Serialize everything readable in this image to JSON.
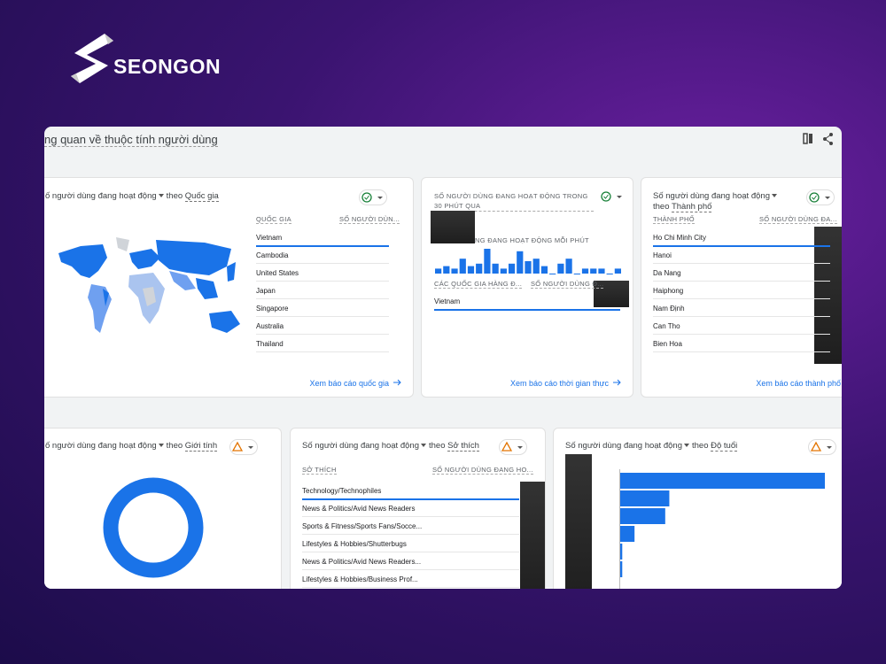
{
  "brand": "SEONGON",
  "page_title": "ng quan về thuộc tính người dùng",
  "cards": [
    {
      "title": "ố người dùng đang hoạt động",
      "by": "theo",
      "dimension": "Quốc gia",
      "columns": [
        "QUỐC GIA",
        "SỐ NGƯỜI DÙN..."
      ],
      "rows": [
        "Vietnam",
        "Cambodia",
        "United States",
        "Japan",
        "Singapore",
        "Australia",
        "Thailand"
      ],
      "link": "Xem báo cáo quốc gia"
    },
    {
      "title": "SỐ NGƯỜI DÙNG ĐANG HOẠT ĐỘNG TRONG 30 PHÚT QUA",
      "subtitle": "NG ĐANG HOẠT ĐỘNG MỖI PHÚT",
      "chart": {
        "type": "bar",
        "color": "#1a73e8",
        "ylim": [
          0,
          10
        ],
        "values": [
          2,
          3,
          2,
          6,
          3,
          4,
          10,
          4,
          2,
          4,
          9,
          5,
          6,
          3,
          0,
          4,
          6,
          0,
          2,
          2,
          2,
          0,
          2
        ]
      },
      "columns": [
        "CÁC QUỐC GIA HÀNG Đ...",
        "SỐ NGƯỜI DÙNG Đ..."
      ],
      "rows": [
        "Vietnam"
      ],
      "link": "Xem báo cáo thời gian thực"
    },
    {
      "title": "Số người dùng đang hoạt động",
      "by": "theo",
      "dimension": "Thành phố",
      "columns": [
        "THÀNH PHỐ",
        "SỐ NGƯỜI DÙNG ĐA..."
      ],
      "rows": [
        "Ho Chi Minh City",
        "Hanoi",
        "Da Nang",
        "Haiphong",
        "Nam Định",
        "Can Tho",
        "Bien Hoa"
      ],
      "link": "Xem báo cáo thành phố"
    },
    {
      "title": "ố người dùng đang hoạt động",
      "by": "theo",
      "dimension": "Giới tính"
    },
    {
      "title": "Số người dùng đang hoạt động",
      "by": "theo",
      "dimension": "Sở thích",
      "columns": [
        "SỞ THÍCH",
        "SỐ NGƯỜI DÙNG ĐANG HO..."
      ],
      "rows": [
        "Technology/Technophiles",
        "News & Politics/Avid News Readers",
        "Sports & Fitness/Sports Fans/Socce...",
        "Lifestyles & Hobbies/Shutterbugs",
        "News & Politics/Avid News Readers...",
        "Lifestyles & Hobbies/Business Prof..."
      ]
    },
    {
      "title": "Số người dùng đang hoạt động",
      "by": "theo",
      "dimension": "Độ tuổi",
      "chart": {
        "type": "barh",
        "color": "#1a73e8",
        "xlim": [
          0,
          100
        ],
        "values": [
          100,
          24,
          22,
          7,
          1,
          1
        ]
      }
    }
  ]
}
